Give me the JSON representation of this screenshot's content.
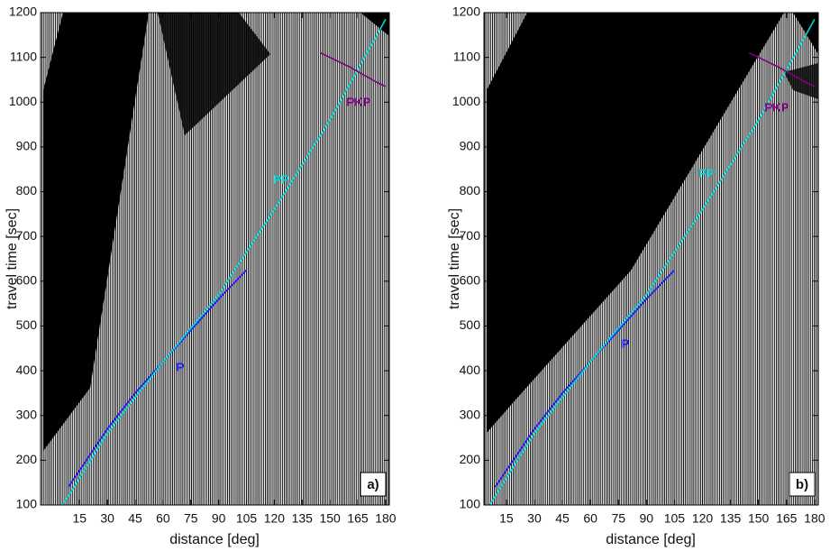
{
  "chart_data": [
    {
      "type": "line",
      "panel_label": "a)",
      "xlabel": "distance [deg]",
      "ylabel": "travel time [sec]",
      "xlim": [
        -6,
        182
      ],
      "ylim": [
        100,
        1200
      ],
      "xticks": [
        15,
        30,
        45,
        60,
        75,
        90,
        105,
        120,
        135,
        150,
        165,
        180
      ],
      "yticks": [
        100,
        200,
        300,
        400,
        500,
        600,
        700,
        800,
        900,
        1000,
        1100,
        1200
      ],
      "series": [
        {
          "name": "P",
          "color": "#1a1aff",
          "x": [
            9,
            30,
            45,
            60,
            75,
            90,
            105
          ],
          "values": [
            140,
            270,
            350,
            420,
            490,
            560,
            625
          ]
        },
        {
          "name": "PP",
          "color": "#00d8d8",
          "x": [
            6,
            30,
            60,
            90,
            120,
            150,
            180
          ],
          "values": [
            100,
            260,
            420,
            570,
            760,
            960,
            1185
          ]
        },
        {
          "name": "PKP",
          "color": "#800080",
          "x": [
            145,
            160,
            175,
            180
          ],
          "values": [
            1110,
            1080,
            1045,
            1035
          ]
        }
      ]
    },
    {
      "type": "line",
      "panel_label": "b)",
      "xlabel": "distance [deg]",
      "ylabel": "travel time [sec]",
      "xlim": [
        3,
        182
      ],
      "ylim": [
        100,
        1200
      ],
      "xticks": [
        15,
        30,
        45,
        60,
        75,
        90,
        105,
        120,
        135,
        150,
        165,
        180
      ],
      "yticks": [
        100,
        200,
        300,
        400,
        500,
        600,
        700,
        800,
        900,
        1000,
        1100,
        1200
      ],
      "series": [
        {
          "name": "P",
          "color": "#1a1aff",
          "x": [
            9,
            30,
            45,
            60,
            75,
            90,
            105
          ],
          "values": [
            140,
            270,
            350,
            420,
            490,
            560,
            625
          ]
        },
        {
          "name": "PP",
          "color": "#00d8d8",
          "x": [
            6,
            30,
            60,
            90,
            120,
            150,
            180
          ],
          "values": [
            100,
            260,
            420,
            570,
            760,
            960,
            1185
          ]
        },
        {
          "name": "PKP",
          "color": "#800080",
          "x": [
            145,
            160,
            175,
            180
          ],
          "values": [
            1110,
            1080,
            1045,
            1035
          ]
        }
      ]
    }
  ]
}
